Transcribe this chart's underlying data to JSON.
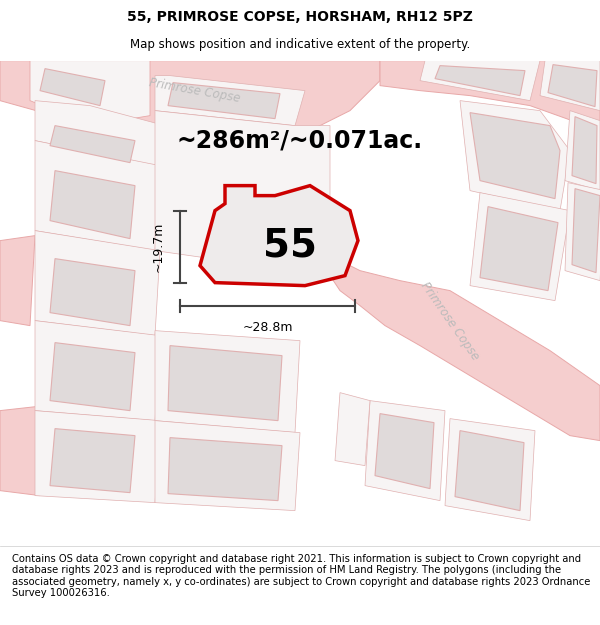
{
  "title": "55, PRIMROSE COPSE, HORSHAM, RH12 5PZ",
  "subtitle": "Map shows position and indicative extent of the property.",
  "area_text": "~286m²/~0.071ac.",
  "width_label": "~28.8m",
  "height_label": "~19.7m",
  "plot_number": "55",
  "footer_text": "Contains OS data © Crown copyright and database right 2021. This information is subject to Crown copyright and database rights 2023 and is reproduced with the permission of HM Land Registry. The polygons (including the associated geometry, namely x, y co-ordinates) are subject to Crown copyright and database rights 2023 Ordnance Survey 100026316.",
  "map_bg": "#f7f4f4",
  "plot_fill": "#eeebeb",
  "plot_outline": "#cc0000",
  "road_color": "#f5cece",
  "road_outline": "#e8a8a8",
  "building_fill": "#e0dada",
  "building_outline": "#e0b0b0",
  "parcel_outline": "#e0b0b0",
  "dim_line_color": "#444444",
  "street_label_color": "#bbbbbb",
  "title_fontsize": 10,
  "subtitle_fontsize": 8.5,
  "area_fontsize": 17,
  "plot_num_fontsize": 28,
  "dim_fontsize": 9,
  "footer_fontsize": 7.2
}
